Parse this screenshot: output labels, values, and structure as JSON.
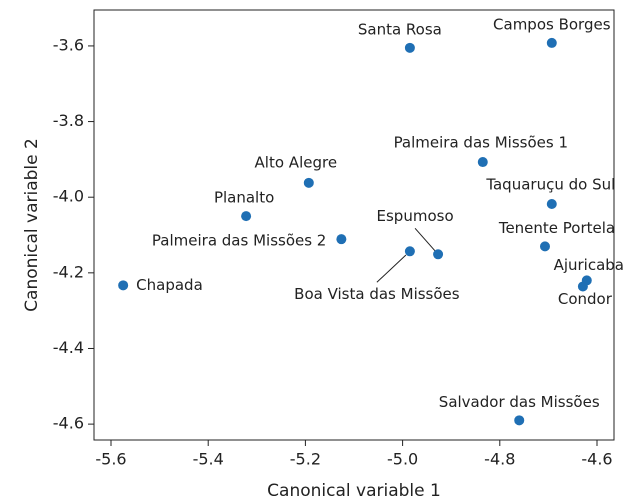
{
  "chart_data": {
    "type": "scatter",
    "xlabel": "Canonical variable 1",
    "ylabel": "Canonical variable 2",
    "color": "#1f6fb4",
    "grid": false,
    "xlim": [
      -5.635,
      -4.565
    ],
    "ylim": [
      -4.642,
      -3.505
    ],
    "xticks": [
      -5.6,
      -5.4,
      -5.2,
      {
        "value": -5,
        "label": "-5.0"
      },
      -4.8,
      -4.6
    ],
    "yticks": [
      -3.6,
      -3.8,
      {
        "value": -4,
        "label": "-4.0"
      },
      -4.2,
      -4.4,
      -4.6
    ],
    "labels": [
      "Santa Rosa",
      "Campos Borges",
      "Palmeira das Missões 1",
      "Alto Alegre",
      "Taquaruçu do Sul",
      "Planalto",
      "Palmeira das Missões 2",
      "Boa Vista das Missões",
      "Espumoso",
      "Tenente Portela",
      "Ajuricaba",
      "Condor",
      "Chapada",
      "Salvador das Missões"
    ],
    "x": [
      -4.985,
      -4.693,
      -4.835,
      -5.193,
      -4.693,
      -5.322,
      -5.126,
      -4.985,
      -4.927,
      -4.707,
      -4.621,
      -4.629,
      -5.575,
      -4.76
    ],
    "y": [
      -3.605,
      -3.592,
      -3.907,
      -3.962,
      -4.018,
      -4.05,
      -4.111,
      -4.143,
      -4.151,
      -4.13,
      -4.22,
      -4.236,
      -4.233,
      -4.59
    ]
  }
}
